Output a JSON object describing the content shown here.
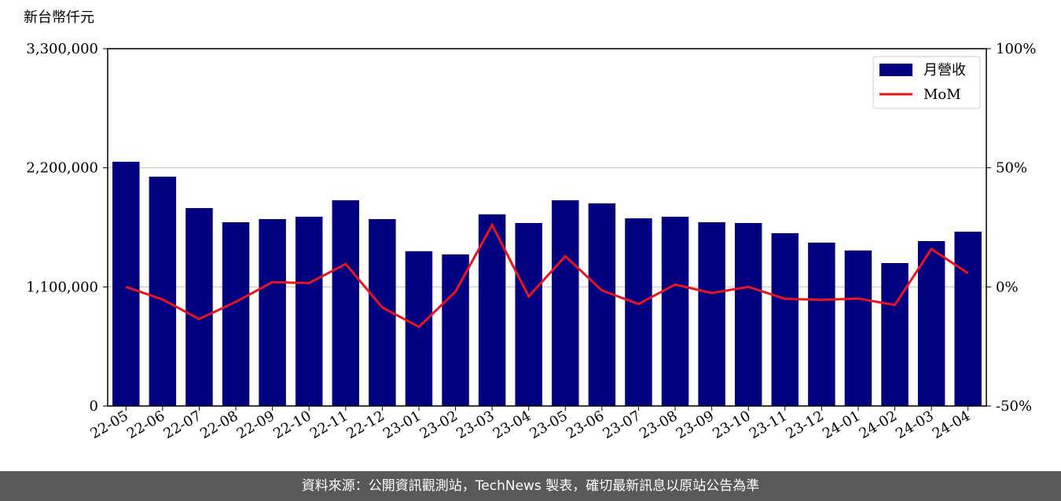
{
  "chart_data": {
    "type": "bar",
    "ylabel": "新台幣仟元",
    "categories": [
      "22-05",
      "22-06",
      "22-07",
      "22-08",
      "22-09",
      "22-10",
      "22-11",
      "22-12",
      "23-01",
      "23-02",
      "23-03",
      "23-04",
      "23-05",
      "23-06",
      "23-07",
      "23-08",
      "23-09",
      "23-10",
      "23-11",
      "23-12",
      "24-01",
      "24-02",
      "24-03",
      "24-04"
    ],
    "series": [
      {
        "name": "月營收",
        "type": "bar",
        "color": "#000080",
        "values": [
          2256000,
          2118000,
          1828000,
          1697000,
          1726000,
          1748000,
          1900000,
          1726000,
          1429000,
          1400000,
          1770000,
          1690000,
          1900000,
          1871000,
          1733000,
          1748000,
          1697000,
          1690000,
          1596000,
          1509000,
          1436000,
          1320000,
          1523000,
          1610000
        ]
      },
      {
        "name": "MoM",
        "type": "line",
        "axis": "y2",
        "color": "#e8141e",
        "values": [
          0,
          -5.3,
          -13.5,
          -6.3,
          2,
          1.6,
          9.6,
          -8.6,
          -16.8,
          -2,
          26,
          -4,
          12.9,
          -1.5,
          -7.2,
          1,
          -2.6,
          0,
          -5,
          -5.4,
          -4.9,
          -7.6,
          15.9,
          5.7
        ]
      }
    ],
    "ylim": [
      0,
      3300000
    ],
    "yticks": [
      0,
      {
        "value": 1100000,
        "label": "1,100,000"
      },
      {
        "value": 2200000,
        "label": "2,200,000"
      },
      {
        "value": 3300000,
        "label": "3,300,000"
      }
    ],
    "y2lim": [
      -50,
      100
    ],
    "y2ticks": [
      {
        "value": -50,
        "label": "-50%"
      },
      {
        "value": 0,
        "label": "0%"
      },
      {
        "value": 50,
        "label": "50%"
      },
      {
        "value": 100,
        "label": "100%"
      }
    ],
    "grid": true,
    "legend": "upper right",
    "footer": "資料來源：公開資訊觀測站，TechNews 製表，確切最新訊息以原站公告為準"
  }
}
